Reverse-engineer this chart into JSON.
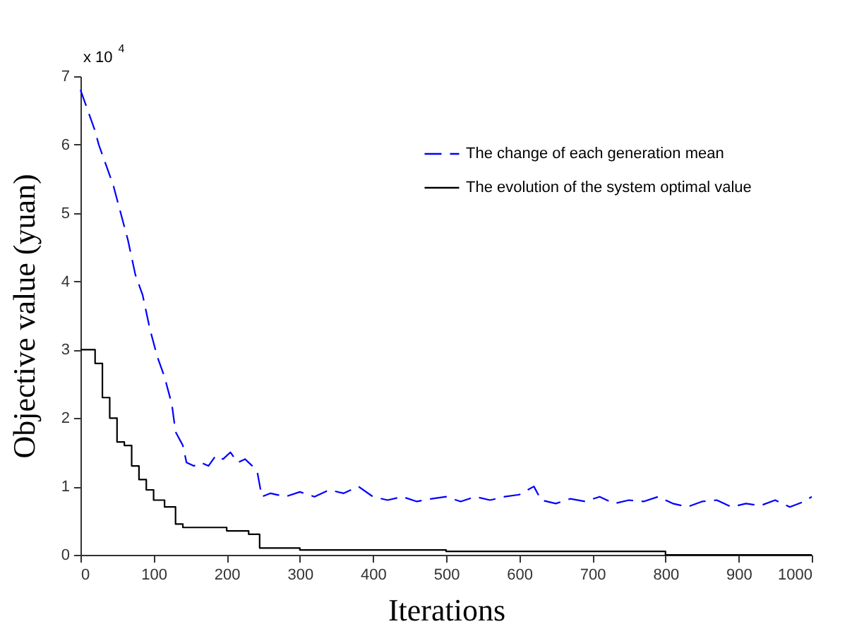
{
  "chart_data": {
    "type": "line",
    "xlabel": "Iterations",
    "ylabel": "Objective value (yuan)",
    "annotations": [
      "x 10$^{4}$"
    ],
    "xlim": [
      0,
      1000
    ],
    "xticks": [
      0,
      100,
      200,
      300,
      400,
      500,
      600,
      700,
      800,
      900,
      1000
    ],
    "ylim": [
      0,
      7
    ],
    "yticks": [
      0,
      1,
      2,
      3,
      4,
      5,
      6,
      7
    ],
    "grid": false,
    "legend": "top right",
    "series": [
      {
        "name": "The change of each generation mean",
        "color": "#0000ff",
        "line_style": "dashed",
        "x": [
          0,
          10,
          20,
          25,
          35,
          45,
          55,
          65,
          75,
          85,
          95,
          105,
          115,
          125,
          130,
          140,
          145,
          155,
          165,
          175,
          185,
          195,
          205,
          215,
          225,
          235,
          242,
          248,
          260,
          280,
          300,
          320,
          340,
          360,
          380,
          400,
          420,
          440,
          460,
          480,
          500,
          520,
          540,
          560,
          580,
          600,
          620,
          630,
          650,
          670,
          690,
          710,
          730,
          750,
          770,
          790,
          810,
          830,
          850,
          870,
          890,
          910,
          930,
          950,
          970,
          990,
          1000
        ],
        "values": [
          6.8,
          6.5,
          6.2,
          6.0,
          5.7,
          5.4,
          5.0,
          4.6,
          4.1,
          3.8,
          3.3,
          2.9,
          2.6,
          2.2,
          1.8,
          1.6,
          1.35,
          1.3,
          1.35,
          1.3,
          1.45,
          1.4,
          1.5,
          1.35,
          1.4,
          1.3,
          1.2,
          0.85,
          0.9,
          0.85,
          0.92,
          0.85,
          0.95,
          0.9,
          1.0,
          0.85,
          0.8,
          0.85,
          0.78,
          0.82,
          0.85,
          0.78,
          0.85,
          0.8,
          0.85,
          0.88,
          1.0,
          0.8,
          0.75,
          0.82,
          0.78,
          0.85,
          0.75,
          0.8,
          0.78,
          0.85,
          0.75,
          0.7,
          0.78,
          0.8,
          0.7,
          0.75,
          0.72,
          0.8,
          0.7,
          0.78,
          0.85
        ]
      },
      {
        "name": "The evolution of the system optimal value",
        "color": "#000000",
        "line_style": "solid",
        "type": "step",
        "x": [
          0,
          20,
          30,
          40,
          50,
          60,
          70,
          80,
          90,
          100,
          115,
          130,
          140,
          200,
          230,
          245,
          300,
          500,
          800,
          1000
        ],
        "values": [
          3.0,
          2.8,
          2.3,
          2.0,
          1.65,
          1.6,
          1.3,
          1.1,
          0.95,
          0.8,
          0.7,
          0.45,
          0.4,
          0.35,
          0.3,
          0.1,
          0.07,
          0.05,
          0.0,
          0.0
        ]
      }
    ]
  }
}
